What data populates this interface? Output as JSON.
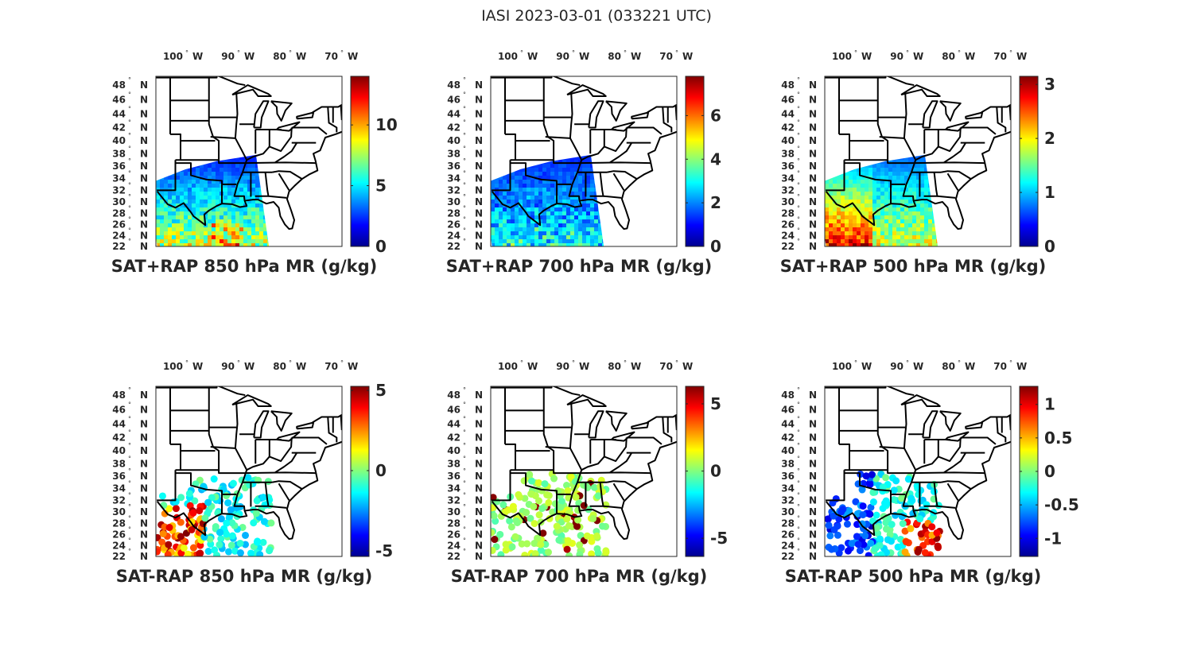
{
  "figure": {
    "title": "IASI 2023-03-01 (033221 UTC)"
  },
  "axes": {
    "lon_ticks": [
      {
        "value": -100,
        "label": "100",
        "hemi": "W"
      },
      {
        "value": -90,
        "label": "90",
        "hemi": "W"
      },
      {
        "value": -80,
        "label": "80",
        "hemi": "W"
      },
      {
        "value": -70,
        "label": "70",
        "hemi": "W"
      }
    ],
    "lat_ticks": [
      {
        "value": 48,
        "label": "48",
        "hemi": "N"
      },
      {
        "value": 46,
        "label": "46",
        "hemi": "N"
      },
      {
        "value": 44,
        "label": "44",
        "hemi": "N"
      },
      {
        "value": 42,
        "label": "42",
        "hemi": "N"
      },
      {
        "value": 40,
        "label": "40",
        "hemi": "N"
      },
      {
        "value": 38,
        "label": "38",
        "hemi": "N"
      },
      {
        "value": 36,
        "label": "36",
        "hemi": "N"
      },
      {
        "value": 34,
        "label": "34",
        "hemi": "N"
      },
      {
        "value": 32,
        "label": "32",
        "hemi": "N"
      },
      {
        "value": 30,
        "label": "30",
        "hemi": "N"
      },
      {
        "value": 28,
        "label": "28",
        "hemi": "N"
      },
      {
        "value": 26,
        "label": "26",
        "hemi": "N"
      },
      {
        "value": 24,
        "label": "24",
        "hemi": "N"
      },
      {
        "value": 22,
        "label": "22",
        "hemi": "N"
      }
    ],
    "degree_symbol": "°"
  },
  "chart_data": [
    {
      "type": "heatmap",
      "kind": "total",
      "title": "SAT+RAP 850 hPa MR (g/kg)",
      "colormap": "jet",
      "clim": [
        0,
        14
      ],
      "cbar_ticks": [
        {
          "v": 0,
          "label": "0"
        },
        {
          "v": 5,
          "label": "5"
        },
        {
          "v": 10,
          "label": "10"
        }
      ],
      "lon_range": [
        -107,
        -70
      ],
      "lat_range": [
        22,
        49.3
      ]
    },
    {
      "type": "heatmap",
      "kind": "total",
      "title": "SAT+RAP 700 hPa MR (g/kg)",
      "colormap": "jet",
      "clim": [
        0,
        7.8
      ],
      "cbar_ticks": [
        {
          "v": 0,
          "label": "0"
        },
        {
          "v": 2,
          "label": "2"
        },
        {
          "v": 4,
          "label": "4"
        },
        {
          "v": 6,
          "label": "6"
        }
      ],
      "lon_range": [
        -107,
        -70
      ],
      "lat_range": [
        22,
        49.3
      ]
    },
    {
      "type": "heatmap",
      "kind": "total",
      "title": "SAT+RAP 500 hPa MR (g/kg)",
      "colormap": "jet",
      "clim": [
        0,
        3.15
      ],
      "cbar_ticks": [
        {
          "v": 0,
          "label": "0"
        },
        {
          "v": 1,
          "label": "1"
        },
        {
          "v": 2,
          "label": "2"
        },
        {
          "v": 3,
          "label": "3"
        }
      ],
      "lon_range": [
        -107,
        -70
      ],
      "lat_range": [
        22,
        49.3
      ]
    },
    {
      "type": "scatter",
      "kind": "diff",
      "title": "SAT-RAP 850 hPa MR (g/kg)",
      "colormap": "jet",
      "clim": [
        -5.35,
        5.25
      ],
      "cbar_ticks": [
        {
          "v": -5,
          "label": "-5"
        },
        {
          "v": 0,
          "label": "0"
        },
        {
          "v": 5,
          "label": "5"
        }
      ],
      "lon_range": [
        -107,
        -70
      ],
      "lat_range": [
        22,
        49.3
      ]
    },
    {
      "type": "scatter",
      "kind": "diff",
      "title": "SAT-RAP 700 hPa MR (g/kg)",
      "colormap": "jet",
      "clim": [
        -6.35,
        6.3
      ],
      "cbar_ticks": [
        {
          "v": -5,
          "label": "-5"
        },
        {
          "v": 0,
          "label": "0"
        },
        {
          "v": 5,
          "label": "5"
        }
      ],
      "lon_range": [
        -107,
        -70
      ],
      "lat_range": [
        22,
        49.3
      ]
    },
    {
      "type": "scatter",
      "kind": "diff",
      "title": "SAT-RAP 500 hPa MR (g/kg)",
      "colormap": "jet",
      "clim": [
        -1.27,
        1.27
      ],
      "cbar_ticks": [
        {
          "v": -1,
          "label": "-1"
        },
        {
          "v": -0.5,
          "label": "-0.5"
        },
        {
          "v": 0,
          "label": "0"
        },
        {
          "v": 0.5,
          "label": "0.5"
        },
        {
          "v": 1,
          "label": "1"
        }
      ],
      "lon_range": [
        -107,
        -70
      ],
      "lat_range": [
        22,
        49.3
      ]
    }
  ]
}
